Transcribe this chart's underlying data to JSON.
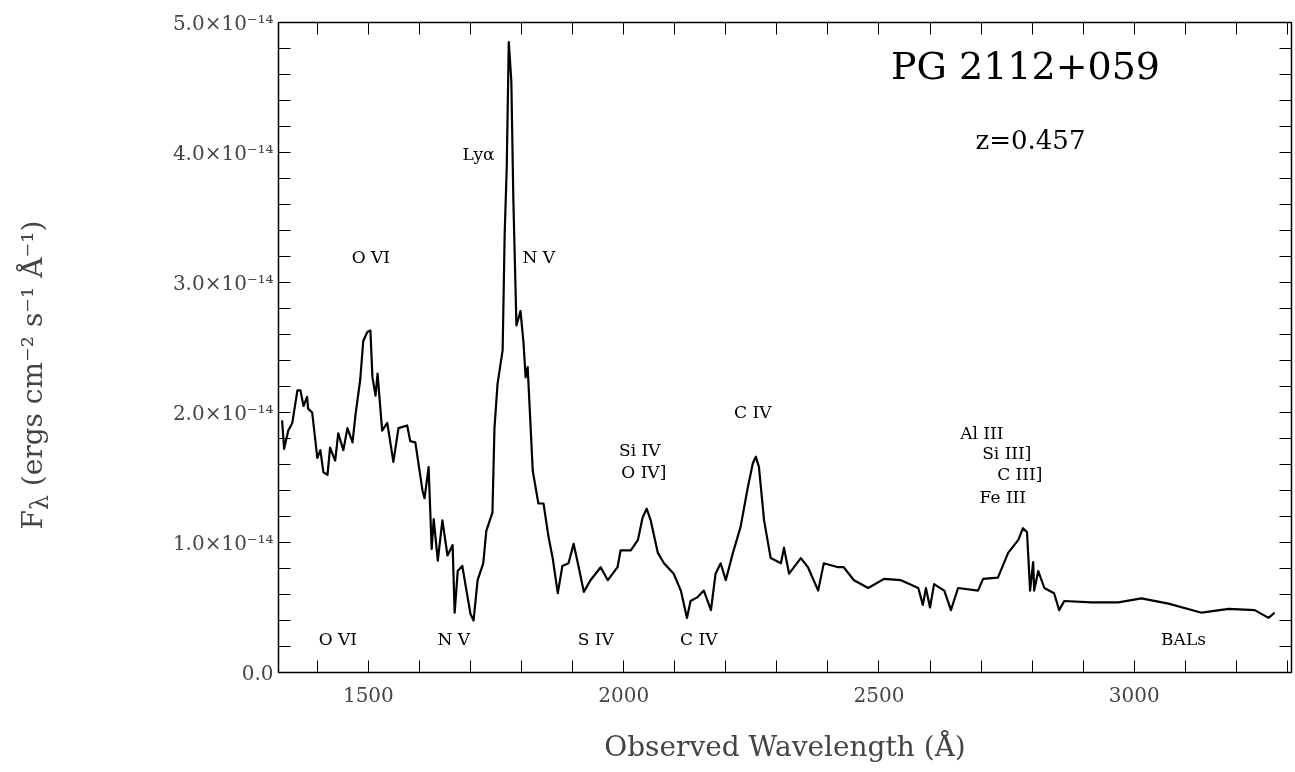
{
  "chart_data": {
    "type": "line",
    "title": "PG 2112+059",
    "subtitle": "z=0.457",
    "xlabel": "Observed Wavelength (Å)",
    "ylabel": "F$_{λ}$ (ergs cm⁻² s⁻¹ Å⁻¹)",
    "xlim": [
      1324,
      3308
    ],
    "ylim": [
      0,
      5e-14
    ],
    "xticks": [
      {
        "value": 1400,
        "label": null
      },
      1500,
      {
        "value": 1600,
        "label": null
      },
      {
        "value": 1700,
        "label": null
      },
      {
        "value": 1800,
        "label": null
      },
      {
        "value": 1900,
        "label": null
      },
      2000,
      {
        "value": 2100,
        "label": null
      },
      {
        "value": 2200,
        "label": null
      },
      {
        "value": 2300,
        "label": null
      },
      {
        "value": 2400,
        "label": null
      },
      2500,
      {
        "value": 2600,
        "label": null
      },
      {
        "value": 2700,
        "label": null
      },
      {
        "value": 2800,
        "label": null
      },
      {
        "value": 2900,
        "label": null
      },
      3000,
      {
        "value": 3100,
        "label": null
      },
      {
        "value": 3200,
        "label": null
      },
      {
        "value": 3300,
        "label": null
      }
    ],
    "yticks": [
      {
        "value": 0,
        "label": "0.0"
      },
      {
        "value": 2e-15,
        "label": null
      },
      {
        "value": 4e-15,
        "label": null
      },
      {
        "value": 6e-15,
        "label": null
      },
      {
        "value": 8e-15,
        "label": null
      },
      {
        "value": 1e-14,
        "label": "1.0×10⁻¹⁴"
      },
      {
        "value": 1.2e-14,
        "label": null
      },
      {
        "value": 1.4e-14,
        "label": null
      },
      {
        "value": 1.6e-14,
        "label": null
      },
      {
        "value": 1.8e-14,
        "label": null
      },
      {
        "value": 2e-14,
        "label": "2.0×10⁻¹⁴"
      },
      {
        "value": 2.2e-14,
        "label": null
      },
      {
        "value": 2.4e-14,
        "label": null
      },
      {
        "value": 2.6e-14,
        "label": null
      },
      {
        "value": 2.8e-14,
        "label": null
      },
      {
        "value": 3e-14,
        "label": "3.0×10⁻¹⁴"
      },
      {
        "value": 3.2e-14,
        "label": null
      },
      {
        "value": 3.4e-14,
        "label": null
      },
      {
        "value": 3.6e-14,
        "label": null
      },
      {
        "value": 3.8e-14,
        "label": null
      },
      {
        "value": 4e-14,
        "label": "4.0×10⁻¹⁴"
      },
      {
        "value": 4.2e-14,
        "label": null
      },
      {
        "value": 4.4e-14,
        "label": null
      },
      {
        "value": 4.6e-14,
        "label": null
      },
      {
        "value": 4.8e-14,
        "label": null
      },
      {
        "value": 5e-14,
        "label": "5.0×10⁻¹⁴"
      }
    ],
    "grid": false,
    "marker": "none",
    "line_style": "solid",
    "x": [
      1331,
      1335,
      1343,
      1351,
      1361,
      1367,
      1373,
      1380,
      1382,
      1390,
      1400,
      1406,
      1412,
      1420,
      1425,
      1435,
      1441,
      1451,
      1459,
      1469,
      1475,
      1484,
      1490,
      1498,
      1504,
      1508,
      1514,
      1518,
      1527,
      1537,
      1549,
      1559,
      1576,
      1582,
      1592,
      1606,
      1610,
      1618,
      1624,
      1628,
      1636,
      1645,
      1655,
      1665,
      1669,
      1675,
      1684,
      1690,
      1700,
      1706,
      1714,
      1725,
      1731,
      1743,
      1747,
      1753,
      1763,
      1767,
      1771,
      1775,
      1780,
      1784,
      1790,
      1798,
      1804,
      1808,
      1812,
      1822,
      1833,
      1843,
      1853,
      1861,
      1871,
      1880,
      1892,
      1902,
      1912,
      1922,
      1935,
      1955,
      1969,
      1988,
      1994,
      2014,
      2028,
      2037,
      2045,
      2053,
      2067,
      2079,
      2098,
      2112,
      2124,
      2131,
      2145,
      2157,
      2171,
      2180,
      2190,
      2200,
      2214,
      2229,
      2243,
      2253,
      2259,
      2265,
      2275,
      2288,
      2308,
      2314,
      2324,
      2347,
      2361,
      2381,
      2392,
      2420,
      2431,
      2451,
      2479,
      2510,
      2543,
      2577,
      2586,
      2592,
      2600,
      2608,
      2628,
      2641,
      2655,
      2694,
      2704,
      2733,
      2753,
      2773,
      2782,
      2790,
      2796,
      2802,
      2804,
      2812,
      2824,
      2843,
      2853,
      2863,
      2916,
      2969,
      3014,
      3067,
      3132,
      3185,
      3236,
      3263,
      3275
    ],
    "series": [
      {
        "color": "#000000",
        "values": [
          1.94e-14,
          1.72e-14,
          1.86e-14,
          1.92e-14,
          2.17e-14,
          2.17e-14,
          2.05e-14,
          2.12e-14,
          2.03e-14,
          2e-14,
          1.65e-14,
          1.71e-14,
          1.54e-14,
          1.52e-14,
          1.73e-14,
          1.63e-14,
          1.84e-14,
          1.71e-14,
          1.88e-14,
          1.77e-14,
          1.99e-14,
          2.25e-14,
          2.55e-14,
          2.62e-14,
          2.63e-14,
          2.27e-14,
          2.13e-14,
          2.3e-14,
          1.86e-14,
          1.92e-14,
          1.62e-14,
          1.88e-14,
          1.9e-14,
          1.78e-14,
          1.77e-14,
          1.4e-14,
          1.34e-14,
          1.58e-14,
          9.5e-15,
          1.18e-14,
          8.6e-15,
          1.17e-14,
          9e-15,
          9.8e-15,
          4.6e-15,
          7.8e-15,
          8.2e-15,
          6.8e-15,
          4.5e-15,
          4e-15,
          7.1e-15,
          8.4e-15,
          1.09e-14,
          1.23e-14,
          1.88e-14,
          2.22e-14,
          2.48e-14,
          3.38e-14,
          3.88e-14,
          4.85e-14,
          4.55e-14,
          3.63e-14,
          2.67e-14,
          2.78e-14,
          2.53e-14,
          2.27e-14,
          2.35e-14,
          1.55e-14,
          1.3e-14,
          1.3e-14,
          1.04e-14,
          8.8e-15,
          6.1e-15,
          8.2e-15,
          8.4e-15,
          9.9e-15,
          8.1e-15,
          6.2e-15,
          7.1e-15,
          8.1e-15,
          7.1e-15,
          8.1e-15,
          9.4e-15,
          9.4e-15,
          1.02e-14,
          1.19e-14,
          1.26e-14,
          1.17e-14,
          9.2e-15,
          8.4e-15,
          7.6e-15,
          6.3e-15,
          4.2e-15,
          5.5e-15,
          5.8e-15,
          6.3e-15,
          4.8e-15,
          7.6e-15,
          8.4e-15,
          7.1e-15,
          9.2e-15,
          1.12e-14,
          1.42e-14,
          1.61e-14,
          1.66e-14,
          1.58e-14,
          1.17e-14,
          8.8e-15,
          8.4e-15,
          9.6e-15,
          7.6e-15,
          8.8e-15,
          8.1e-15,
          6.3e-15,
          8.4e-15,
          8.1e-15,
          8.1e-15,
          7.1e-15,
          6.5e-15,
          7.2e-15,
          7.1e-15,
          6.5e-15,
          5.2e-15,
          6.5e-15,
          5e-15,
          6.8e-15,
          6.3e-15,
          4.8e-15,
          6.5e-15,
          6.3e-15,
          7.2e-15,
          7.3e-15,
          9.2e-15,
          1.02e-14,
          1.11e-14,
          1.08e-14,
          6.3e-15,
          8.5e-15,
          6.3e-15,
          7.8e-15,
          6.5e-15,
          6.1e-15,
          4.8e-15,
          5.5e-15,
          5.4e-15,
          5.4e-15,
          5.7e-15,
          5.3e-15,
          4.6e-15,
          4.9e-15,
          4.8e-15,
          4.2e-15,
          4.6e-15
        ]
      }
    ],
    "annotations": [
      "O  VI",
      "Lyα",
      "N  V",
      "Si  IV",
      "O  IV]",
      "C  IV",
      "Al  III",
      "Si  III]",
      "C  III]",
      "Fe  III",
      "O  VI",
      "N  V",
      "S  IV",
      "C  IV",
      "BALs"
    ]
  }
}
